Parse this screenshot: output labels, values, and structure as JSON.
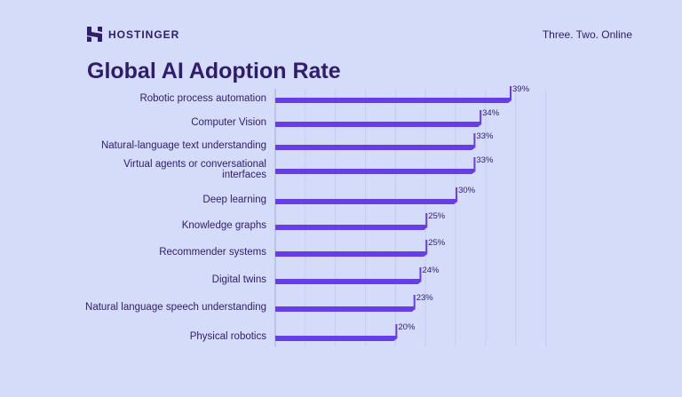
{
  "header": {
    "brand": "HOSTINGER",
    "tagline": "Three. Two. Online"
  },
  "colors": {
    "bar": "#673de6",
    "text": "#2f1c6a",
    "background": "#d5dcfa",
    "grid": "#c4cbf2"
  },
  "chart_data": {
    "type": "bar",
    "orientation": "horizontal",
    "title": "Global AI Adoption Rate",
    "categories": [
      [
        "Robotic process automation"
      ],
      [
        "Computer Vision"
      ],
      [
        "Natural-language text understanding"
      ],
      [
        "Virtual agents or conversational",
        "interfaces"
      ],
      [
        "Deep learning"
      ],
      [
        "Knowledge graphs"
      ],
      [
        "Recommender systems"
      ],
      [
        "Digital twins"
      ],
      [
        "Natural language speech understanding"
      ],
      [
        "Physical robotics"
      ]
    ],
    "values": [
      39,
      34,
      33,
      33,
      30,
      25,
      25,
      24,
      23,
      20
    ],
    "data_labels": [
      "39%",
      "34%",
      "33%",
      "33%",
      "30%",
      "25%",
      "25%",
      "24%",
      "23%",
      "20%"
    ],
    "xlim": [
      0,
      45
    ],
    "grid": true,
    "unit": "%"
  }
}
